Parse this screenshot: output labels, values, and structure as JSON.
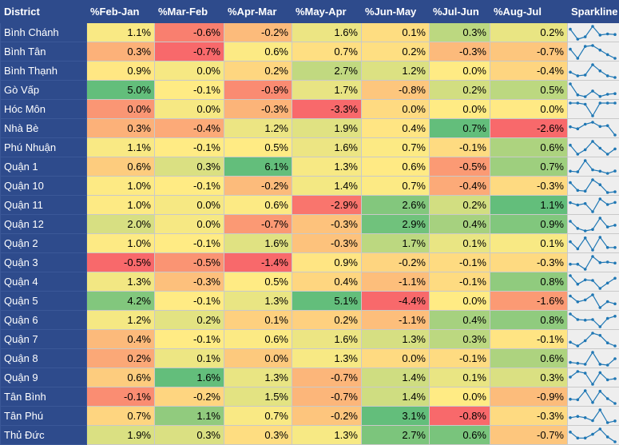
{
  "headers": [
    "District",
    "%Feb-Jan",
    "%Mar-Feb",
    "%Apr-Mar",
    "%May-Apr",
    "%Jun-May",
    "%Jul-Jun",
    "%Aug-Jul",
    "Sparkline"
  ],
  "rows": [
    {
      "district": "Bình Chánh",
      "values": [
        "1.1%",
        "-0.6%",
        "-0.2%",
        "1.6%",
        "0.1%",
        "0.3%",
        "0.2%"
      ],
      "nums": [
        1.1,
        -0.6,
        -0.2,
        1.6,
        0.1,
        0.3,
        0.2
      ]
    },
    {
      "district": "Bình Tân",
      "values": [
        "0.3%",
        "-0.7%",
        "0.6%",
        "0.7%",
        "0.2%",
        "-0.3%",
        "-0.7%"
      ],
      "nums": [
        0.3,
        -0.7,
        0.6,
        0.7,
        0.2,
        -0.3,
        -0.7
      ]
    },
    {
      "district": "Bình Thạnh",
      "values": [
        "0.9%",
        "0.0%",
        "0.2%",
        "2.7%",
        "1.2%",
        "0.0%",
        "-0.4%"
      ],
      "nums": [
        0.9,
        0.0,
        0.2,
        2.7,
        1.2,
        0.0,
        -0.4
      ]
    },
    {
      "district": "Gò Vấp",
      "values": [
        "5.0%",
        "-0.1%",
        "-0.9%",
        "1.7%",
        "-0.8%",
        "0.2%",
        "0.5%"
      ],
      "nums": [
        5.0,
        -0.1,
        -0.9,
        1.7,
        -0.8,
        0.2,
        0.5
      ]
    },
    {
      "district": "Hóc Môn",
      "values": [
        "0.0%",
        "0.0%",
        "-0.3%",
        "-3.3%",
        "0.0%",
        "0.0%",
        "0.0%"
      ],
      "nums": [
        0.0,
        0.0,
        -0.3,
        -3.3,
        0.0,
        0.0,
        0.0
      ]
    },
    {
      "district": "Nhà Bè",
      "values": [
        "0.3%",
        "-0.4%",
        "1.2%",
        "1.9%",
        "0.4%",
        "0.7%",
        "-2.6%"
      ],
      "nums": [
        0.3,
        -0.4,
        1.2,
        1.9,
        0.4,
        0.7,
        -2.6
      ]
    },
    {
      "district": "Phú Nhuận",
      "values": [
        "1.1%",
        "-0.1%",
        "0.5%",
        "1.6%",
        "0.7%",
        "-0.1%",
        "0.6%"
      ],
      "nums": [
        1.1,
        -0.1,
        0.5,
        1.6,
        0.7,
        -0.1,
        0.6
      ]
    },
    {
      "district": "Quận 1",
      "values": [
        "0.6%",
        "0.3%",
        "6.1%",
        "1.3%",
        "0.6%",
        "-0.5%",
        "0.7%"
      ],
      "nums": [
        0.6,
        0.3,
        6.1,
        1.3,
        0.6,
        -0.5,
        0.7
      ]
    },
    {
      "district": "Quận 10",
      "values": [
        "1.0%",
        "-0.1%",
        "-0.2%",
        "1.4%",
        "0.7%",
        "-0.4%",
        "-0.3%"
      ],
      "nums": [
        1.0,
        -0.1,
        -0.2,
        1.4,
        0.7,
        -0.4,
        -0.3
      ]
    },
    {
      "district": "Quận 11",
      "values": [
        "1.0%",
        "0.0%",
        "0.6%",
        "-2.9%",
        "2.6%",
        "0.2%",
        "1.1%"
      ],
      "nums": [
        1.0,
        0.0,
        0.6,
        -2.9,
        2.6,
        0.2,
        1.1
      ]
    },
    {
      "district": "Quận 12",
      "values": [
        "2.0%",
        "0.0%",
        "-0.7%",
        "-0.3%",
        "2.9%",
        "0.4%",
        "0.9%"
      ],
      "nums": [
        2.0,
        0.0,
        -0.7,
        -0.3,
        2.9,
        0.4,
        0.9
      ]
    },
    {
      "district": "Quận 2",
      "values": [
        "1.0%",
        "-0.1%",
        "1.6%",
        "-0.3%",
        "1.7%",
        "0.1%",
        "0.1%"
      ],
      "nums": [
        1.0,
        -0.1,
        1.6,
        -0.3,
        1.7,
        0.1,
        0.1
      ]
    },
    {
      "district": "Quận 3",
      "values": [
        "-0.5%",
        "-0.5%",
        "-1.4%",
        "0.9%",
        "-0.2%",
        "-0.1%",
        "-0.3%"
      ],
      "nums": [
        -0.5,
        -0.5,
        -1.4,
        0.9,
        -0.2,
        -0.1,
        -0.3
      ]
    },
    {
      "district": "Quận 4",
      "values": [
        "1.3%",
        "-0.3%",
        "0.5%",
        "0.4%",
        "-1.1%",
        "-0.1%",
        "0.8%"
      ],
      "nums": [
        1.3,
        -0.3,
        0.5,
        0.4,
        -1.1,
        -0.1,
        0.8
      ]
    },
    {
      "district": "Quận 5",
      "values": [
        "4.2%",
        "-0.1%",
        "1.3%",
        "5.1%",
        "-4.4%",
        "0.0%",
        "-1.6%"
      ],
      "nums": [
        4.2,
        -0.1,
        1.3,
        5.1,
        -4.4,
        0.0,
        -1.6
      ]
    },
    {
      "district": "Quận 6",
      "values": [
        "1.2%",
        "0.2%",
        "0.1%",
        "0.2%",
        "-1.1%",
        "0.4%",
        "0.8%"
      ],
      "nums": [
        1.2,
        0.2,
        0.1,
        0.2,
        -1.1,
        0.4,
        0.8
      ]
    },
    {
      "district": "Quận 7",
      "values": [
        "0.4%",
        "-0.1%",
        "0.6%",
        "1.6%",
        "1.3%",
        "0.3%",
        "-0.1%"
      ],
      "nums": [
        0.4,
        -0.1,
        0.6,
        1.6,
        1.3,
        0.3,
        -0.1
      ]
    },
    {
      "district": "Quận 8",
      "values": [
        "0.2%",
        "0.1%",
        "0.0%",
        "1.3%",
        "0.0%",
        "-0.1%",
        "0.6%"
      ],
      "nums": [
        0.2,
        0.1,
        0.0,
        1.3,
        0.0,
        -0.1,
        0.6
      ]
    },
    {
      "district": "Quận 9",
      "values": [
        "0.6%",
        "1.6%",
        "1.3%",
        "-0.7%",
        "1.4%",
        "0.1%",
        "0.3%"
      ],
      "nums": [
        0.6,
        1.6,
        1.3,
        -0.7,
        1.4,
        0.1,
        0.3
      ]
    },
    {
      "district": "Tân Bình",
      "values": [
        "-0.1%",
        "-0.2%",
        "1.5%",
        "-0.7%",
        "1.4%",
        "0.0%",
        "-0.9%"
      ],
      "nums": [
        -0.1,
        -0.2,
        1.5,
        -0.7,
        1.4,
        0.0,
        -0.9
      ]
    },
    {
      "district": "Tân Phú",
      "values": [
        "0.7%",
        "1.1%",
        "0.7%",
        "-0.2%",
        "3.1%",
        "-0.8%",
        "-0.3%"
      ],
      "nums": [
        0.7,
        1.1,
        0.7,
        -0.2,
        3.1,
        -0.8,
        -0.3
      ]
    },
    {
      "district": "Thủ Đức",
      "values": [
        "1.9%",
        "0.3%",
        "0.3%",
        "1.3%",
        "2.7%",
        "0.6%",
        "-0.7%"
      ],
      "nums": [
        1.9,
        0.3,
        0.3,
        1.3,
        2.7,
        0.6,
        -0.7
      ]
    }
  ],
  "colors": {
    "header_bg": "#2e4b8c",
    "scale_low": "#f8696b",
    "scale_mid": "#ffeb84",
    "scale_high": "#63be7b",
    "sparkline_line": "#1f77b4",
    "sparkline_bg": "#eeeeee"
  }
}
